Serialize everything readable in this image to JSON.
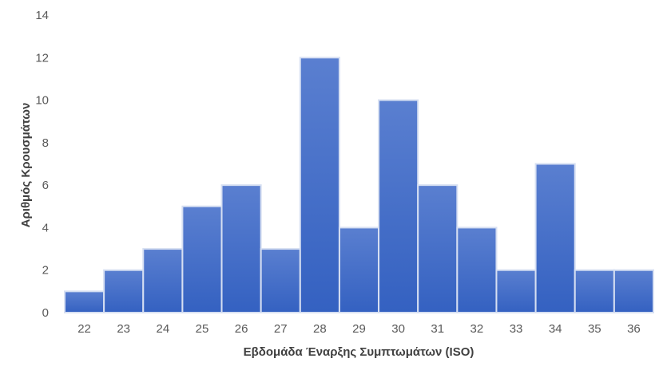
{
  "chart_data": {
    "type": "bar",
    "title": "",
    "xlabel": "Εβδομάδα Έναρξης Συμπτωμάτων (ISO)",
    "ylabel": "Αριθμός Κρουσμάτων",
    "categories": [
      "22",
      "23",
      "24",
      "25",
      "26",
      "27",
      "28",
      "29",
      "30",
      "31",
      "32",
      "33",
      "34",
      "35",
      "36"
    ],
    "values": [
      1,
      2,
      3,
      5,
      6,
      3,
      12,
      4,
      10,
      6,
      4,
      2,
      7,
      2,
      2
    ],
    "ylim": [
      0,
      14
    ],
    "yticks": [
      0,
      2,
      4,
      6,
      8,
      10,
      12,
      14
    ],
    "grid": false,
    "legend": null,
    "bar_gap": 0,
    "colors": {
      "bar_top": "#5a7fd0",
      "bar_bottom": "#3461c1",
      "bar_border": "#d6dff2",
      "tick_text": "#595959",
      "axis_title": "#404040"
    }
  }
}
